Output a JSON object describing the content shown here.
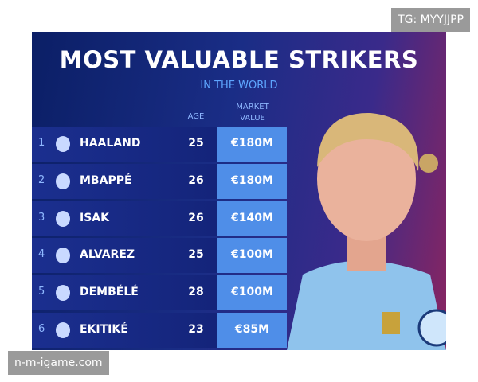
{
  "watermark_top": "TG: MYYJJPP",
  "title": "MOST VALUABLE STRIKERS",
  "subtitle": "IN THE WORLD",
  "table": {
    "headers": {
      "age": "AGE",
      "market_value": "MARKET VALUE"
    },
    "rows": [
      {
        "rank": 1,
        "name": "HAALAND",
        "age": 25,
        "value": "€180M"
      },
      {
        "rank": 2,
        "name": "MBAPPÉ",
        "age": 26,
        "value": "€180M"
      },
      {
        "rank": 3,
        "name": "ISAK",
        "age": 26,
        "value": "€140M"
      },
      {
        "rank": 4,
        "name": "ALVAREZ",
        "age": 25,
        "value": "€100M"
      },
      {
        "rank": 5,
        "name": "DEMBÉLÉ",
        "age": 28,
        "value": "€100M"
      },
      {
        "rank": 6,
        "name": "EKITIKÉ",
        "age": 23,
        "value": "€85M"
      }
    ]
  },
  "watermark_bottom": "n-m-igame.com"
}
